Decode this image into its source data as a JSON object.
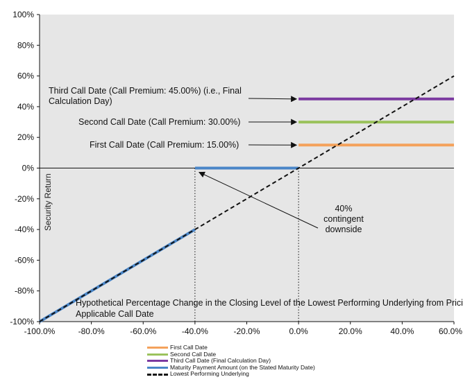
{
  "chart_data": {
    "type": "line",
    "xlabel": "Hypothetical Percentage Change in the Closing Level of the Lowest Performing Underlying from Pricing Date to Applicable Call Date",
    "ylabel": "Security Return",
    "xlim": [
      -100,
      60
    ],
    "ylim": [
      -100,
      100
    ],
    "x_ticks": [
      -100,
      -80,
      -60,
      -40,
      -20,
      0,
      20,
      40,
      60
    ],
    "x_tick_labels": [
      "-100.0%",
      "-80.0%",
      "-60.0%",
      "-40.0%",
      "-20.0%",
      "0.0%",
      "20.0%",
      "40.0%",
      "60.0%"
    ],
    "y_ticks": [
      -100,
      -80,
      -60,
      -40,
      -20,
      0,
      20,
      40,
      60,
      80,
      100
    ],
    "y_tick_labels": [
      "-100%",
      "-80%",
      "-60%",
      "-40%",
      "-20%",
      "0%",
      "20%",
      "40%",
      "60%",
      "80%",
      "100%"
    ],
    "grid": false,
    "background_color": "#e6e6e6",
    "series": [
      {
        "name": "First Call Date",
        "color": "#f4a25b",
        "style": "solid",
        "points": [
          [
            0,
            15
          ],
          [
            60,
            15
          ]
        ]
      },
      {
        "name": "Second Call Date",
        "color": "#9bc25c",
        "style": "solid",
        "points": [
          [
            0,
            30
          ],
          [
            60,
            30
          ]
        ]
      },
      {
        "name": "Third Call Date (Final Calculation Day)",
        "color": "#7b3aa0",
        "style": "solid",
        "points": [
          [
            0,
            45
          ],
          [
            60,
            45
          ]
        ]
      },
      {
        "name": "Maturity Payment Amount (on the Stated Maturity Date)",
        "color": "#4a86c8",
        "style": "solid",
        "segments": [
          [
            [
              -100,
              -100
            ],
            [
              -40,
              -40
            ]
          ],
          [
            [
              -40,
              0
            ],
            [
              0,
              0
            ]
          ]
        ]
      },
      {
        "name": "Lowest Performing Underlying",
        "color": "#111111",
        "style": "dashed",
        "points": [
          [
            -100,
            -100
          ],
          [
            60,
            60
          ]
        ]
      }
    ],
    "reference_lines": [
      {
        "type": "vertical",
        "x": -40,
        "from_y": -100,
        "to_y": 0,
        "style": "dotted"
      },
      {
        "type": "vertical",
        "x": 0,
        "from_y": -100,
        "to_y": 0,
        "style": "dotted"
      },
      {
        "type": "horizontal",
        "y": 0,
        "style": "solid"
      }
    ],
    "annotations": [
      {
        "lines": [
          "Third Call Date (Call Premium: 45.00%) (i.e., Final",
          "Calculation Day)"
        ],
        "arrow_to": [
          0,
          45
        ]
      },
      {
        "lines": [
          "Second Call Date (Call Premium: 30.00%)"
        ],
        "arrow_to": [
          0,
          30
        ]
      },
      {
        "lines": [
          "First Call Date (Call Premium: 15.00%)"
        ],
        "arrow_to": [
          0,
          15
        ]
      },
      {
        "lines": [
          "40%",
          "contingent",
          "downside"
        ],
        "arrow_to": [
          -40,
          0
        ]
      }
    ],
    "legend_position": "bottom-center"
  }
}
